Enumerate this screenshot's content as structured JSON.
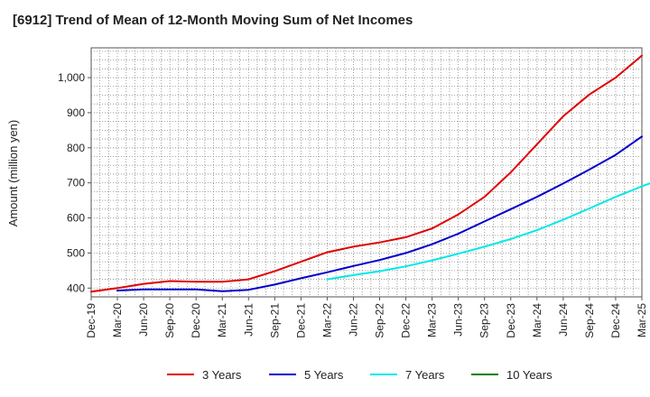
{
  "chart_data": {
    "type": "line",
    "title": "[6912]  Trend of Mean of 12-Month Moving Sum of Net Incomes",
    "xlabel": "",
    "ylabel": "Amount (million yen)",
    "x_ticks": [
      "Dec-19",
      "Mar-20",
      "Jun-20",
      "Sep-20",
      "Dec-20",
      "Mar-21",
      "Jun-21",
      "Sep-21",
      "Dec-21",
      "Mar-22",
      "Jun-22",
      "Sep-22",
      "Dec-22",
      "Mar-23",
      "Jun-23",
      "Sep-23",
      "Dec-23",
      "Mar-24",
      "Jun-24",
      "Sep-24",
      "Dec-24",
      "Mar-25"
    ],
    "y_ticks": [
      400,
      500,
      600,
      700,
      800,
      900,
      1000
    ],
    "y_tick_labels": [
      "400",
      "500",
      "600",
      "700",
      "800",
      "900",
      "1,000"
    ],
    "ylim": [
      375,
      1085
    ],
    "grid": true,
    "legend_position": "bottom",
    "series": [
      {
        "name": "3 Years",
        "color": "#e00000",
        "start_index": 0,
        "values": [
          390,
          400,
          412,
          420,
          418,
          418,
          425,
          448,
          475,
          502,
          518,
          530,
          545,
          570,
          610,
          660,
          730,
          810,
          890,
          952,
          1000,
          1063
        ]
      },
      {
        "name": "5 Years",
        "color": "#0000cc",
        "start_index": 1,
        "values": [
          393,
          396,
          396,
          396,
          391,
          395,
          410,
          428,
          445,
          463,
          480,
          500,
          525,
          555,
          590,
          625,
          660,
          698,
          738,
          780,
          832
        ]
      },
      {
        "name": "7 Years",
        "color": "#00e8e8",
        "start_index": 9,
        "values": [
          425,
          437,
          448,
          462,
          479,
          498,
          518,
          540,
          565,
          595,
          627,
          660,
          690,
          718
        ]
      },
      {
        "name": "10 Years",
        "color": "#008000",
        "start_index": 0,
        "values": []
      }
    ]
  }
}
